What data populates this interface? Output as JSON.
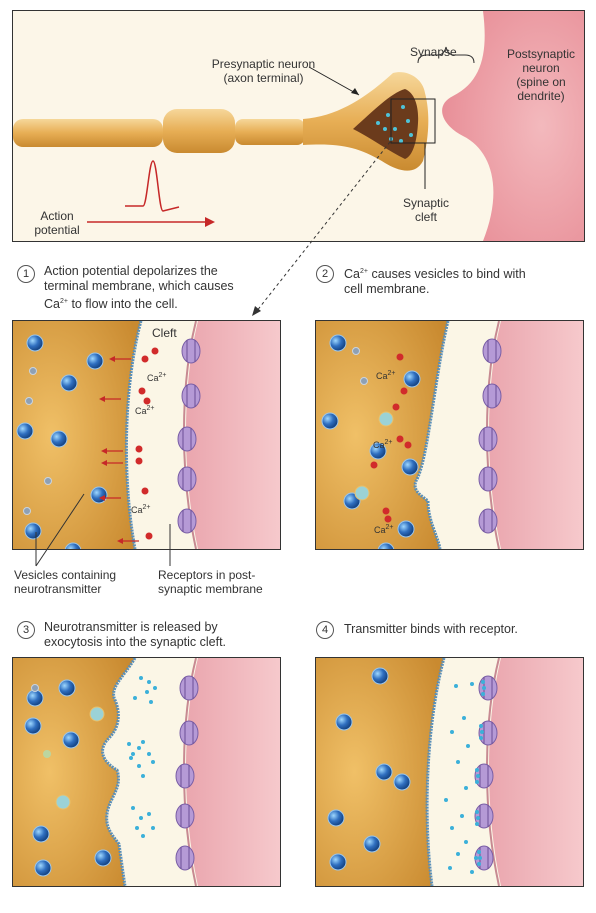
{
  "top": {
    "presynaptic_label_1": "Presynaptic neuron",
    "presynaptic_label_2": "(axon terminal)",
    "synapse_label": "Synapse",
    "postsynaptic_label_1": "Postsynaptic",
    "postsynaptic_label_2": "neuron",
    "postsynaptic_label_3": "(spine on",
    "postsynaptic_label_4": "dendrite)",
    "synaptic_cleft_1": "Synaptic",
    "synaptic_cleft_2": "cleft",
    "action_potential_1": "Action",
    "action_potential_2": "potential"
  },
  "steps": [
    {
      "number": "1",
      "line1": "Action potential depolarizes the",
      "line2": "terminal membrane, which causes",
      "line3_pre": "Ca",
      "line3_sup": "2+",
      "line3_post": " to flow into the cell."
    },
    {
      "number": "2",
      "line1_pre": "Ca",
      "line1_sup": "2+",
      "line1_post": " causes vesicles to bind with",
      "line2": "cell membrane."
    },
    {
      "number": "3",
      "line1": "Neurotransmitter is released by",
      "line2": "exocytosis into the synaptic cleft."
    },
    {
      "number": "4",
      "line1": "Transmitter binds with receptor."
    }
  ],
  "panel1": {
    "cleft_label": "Cleft",
    "ca_label": "Ca",
    "ca_sup": "2+",
    "vesicles_label_1": "Vesicles containing",
    "vesicles_label_2": "neurotransmitter",
    "receptors_label_1": "Receptors in post-",
    "receptors_label_2": "synaptic membrane"
  },
  "colors": {
    "presynaptic": "#e0a64a",
    "postsynaptic": "#e8a0a8",
    "cleft": "#fbf6e6",
    "vesicle": "#2f6fc0",
    "calcium": "#d12b2b",
    "receptor": "#b59ad6",
    "arrow": "#c62828"
  }
}
